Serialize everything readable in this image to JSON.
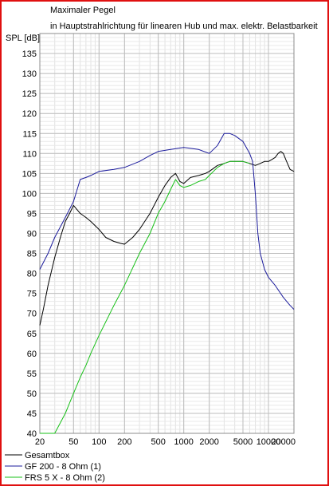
{
  "chart_data": {
    "type": "line",
    "title": "Maximaler Pegel",
    "subtitle": "in Hauptstrahlrichtung für linearen Hub und max. elektr. Belastbarkeit",
    "ylabel": "SPL [dB]",
    "xlabel": "",
    "x_scale": "log",
    "xlim": [
      20,
      20000
    ],
    "ylim": [
      40,
      140
    ],
    "grid": true,
    "x_ticks": [
      20,
      50,
      100,
      200,
      500,
      1000,
      2000,
      5000,
      10000,
      20000
    ],
    "x_tick_labels": [
      "20",
      "50",
      "100",
      "200",
      "500",
      "1000",
      "2000",
      "5000",
      "10000",
      "20000"
    ],
    "y_ticks": [
      40,
      45,
      50,
      55,
      60,
      65,
      70,
      75,
      80,
      85,
      90,
      95,
      100,
      105,
      110,
      115,
      120,
      125,
      130,
      135
    ],
    "y_tick_labels": [
      "40",
      "45",
      "50",
      "55",
      "60",
      "65",
      "70",
      "75",
      "80",
      "85",
      "90",
      "95",
      "100",
      "105",
      "110",
      "115",
      "120",
      "125",
      "130",
      "135"
    ],
    "legend_position": "bottom",
    "series": [
      {
        "name": "Gesamtbox",
        "color": "#000000",
        "x": [
          20,
          22,
          25,
          30,
          35,
          40,
          45,
          50,
          60,
          70,
          80,
          100,
          120,
          150,
          180,
          200,
          250,
          300,
          400,
          500,
          600,
          700,
          800,
          900,
          1000,
          1200,
          1500,
          1800,
          2000,
          2500,
          3000,
          3500,
          4000,
          5000,
          6000,
          7000,
          8000,
          9000,
          10000,
          11000,
          12000,
          13000,
          14000,
          15000,
          16000,
          18000,
          20000
        ],
        "y": [
          67,
          71,
          77,
          84,
          89,
          93,
          95,
          97,
          95,
          94,
          93,
          91,
          89,
          88,
          87.5,
          87.3,
          89,
          91,
          95,
          99,
          102,
          104,
          105,
          103,
          102.5,
          104,
          104.5,
          105,
          105.5,
          107,
          107.5,
          108,
          108,
          108,
          107.5,
          107,
          107.5,
          108,
          108,
          108.5,
          109,
          110,
          110.5,
          110,
          108.5,
          106,
          105.5
        ]
      },
      {
        "name": "GF 200 - 8 Ohm (1)",
        "color": "#1c1c9c",
        "x": [
          20,
          25,
          30,
          40,
          50,
          60,
          70,
          80,
          100,
          150,
          200,
          300,
          400,
          500,
          700,
          1000,
          1500,
          2000,
          2500,
          3000,
          3500,
          4000,
          5000,
          6000,
          6500,
          7000,
          7500,
          8000,
          9000,
          10000,
          12000,
          15000,
          18000,
          20000
        ],
        "y": [
          81,
          85,
          89,
          94,
          98,
          103.5,
          104,
          104.5,
          105.5,
          106,
          106.5,
          108,
          109.5,
          110.5,
          111,
          111.5,
          111,
          110,
          112,
          115,
          115,
          114.5,
          113,
          110,
          108,
          100,
          90,
          85,
          81,
          79,
          77,
          74,
          72,
          71
        ]
      },
      {
        "name": "FRS 5 X - 8 Ohm (2)",
        "color": "#18c018",
        "x": [
          20,
          30,
          40,
          50,
          60,
          70,
          80,
          100,
          150,
          200,
          300,
          400,
          500,
          600,
          700,
          800,
          900,
          1000,
          1200,
          1500,
          1800,
          2000,
          2500,
          3000,
          3500,
          4000,
          5000,
          6000
        ],
        "y": [
          40,
          40,
          45,
          50,
          54,
          57,
          60,
          64.5,
          72,
          77,
          85,
          90,
          95,
          98,
          101,
          103.5,
          102,
          101.5,
          102,
          103,
          103.5,
          104.5,
          106.5,
          107.5,
          108,
          108,
          108,
          107.5
        ]
      }
    ]
  }
}
